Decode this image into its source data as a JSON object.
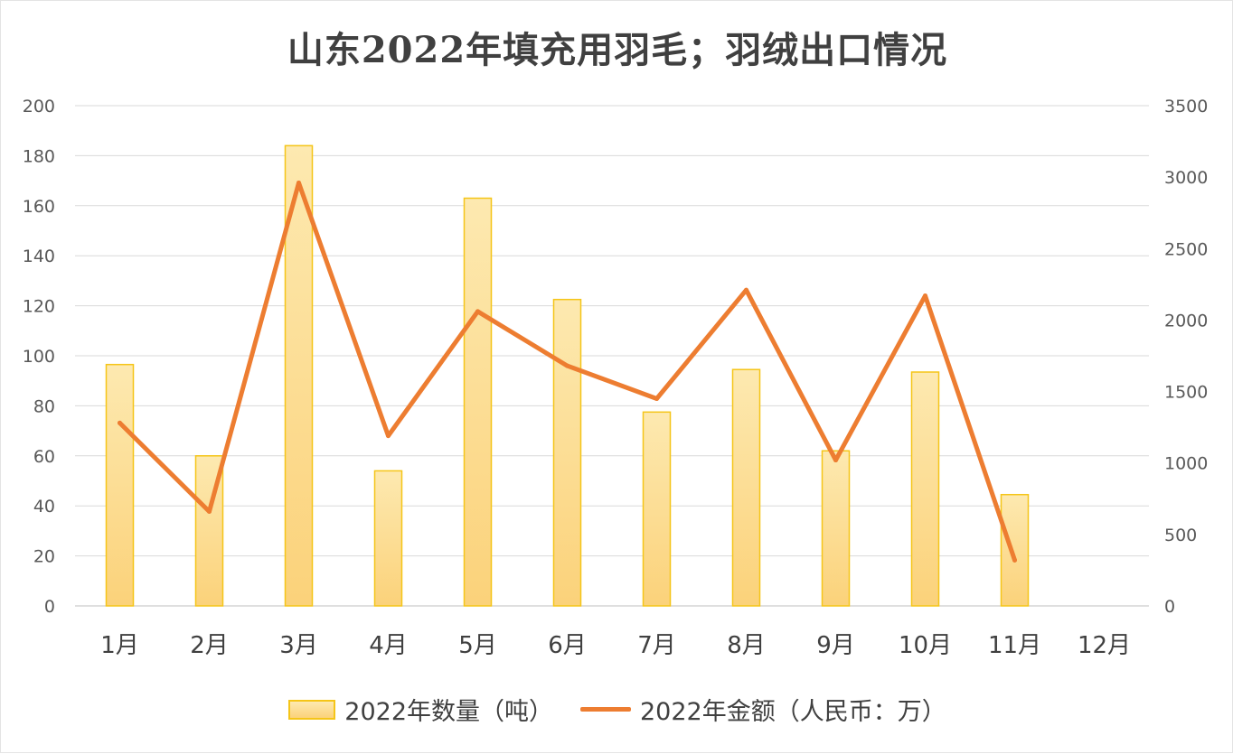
{
  "chart_data": {
    "type": "bar",
    "title": "山东2022年填充用羽毛；羽绒出口情况",
    "categories": [
      "1月",
      "2月",
      "3月",
      "4月",
      "5月",
      "6月",
      "7月",
      "8月",
      "9月",
      "10月",
      "11月",
      "12月"
    ],
    "series": [
      {
        "name": "2022年数量（吨）",
        "type": "bar",
        "axis": "left",
        "values": [
          96.5,
          60,
          184,
          54,
          163,
          122.5,
          77.5,
          94.5,
          62,
          93.5,
          44.5,
          null
        ]
      },
      {
        "name": "2022年金额（人民币：万）",
        "type": "line",
        "axis": "right",
        "values": [
          1280,
          660,
          2960,
          1190,
          2060,
          1680,
          1450,
          2210,
          1020,
          2170,
          320,
          null
        ]
      }
    ],
    "y_left": {
      "min": 0,
      "max": 200,
      "ticks": [
        0,
        20,
        40,
        60,
        80,
        100,
        120,
        140,
        160,
        180,
        200
      ]
    },
    "y_right": {
      "min": 0,
      "max": 3500,
      "ticks": [
        0,
        500,
        1000,
        1500,
        2000,
        2500,
        3000,
        3500
      ]
    },
    "grid": true,
    "legend_position": "bottom",
    "colors": {
      "bar_fill_top": "#fde9b0",
      "bar_fill_bottom": "#fbd27a",
      "bar_stroke": "#f5c518",
      "line": "#ed7d31",
      "grid": "#d9d9d9"
    }
  }
}
